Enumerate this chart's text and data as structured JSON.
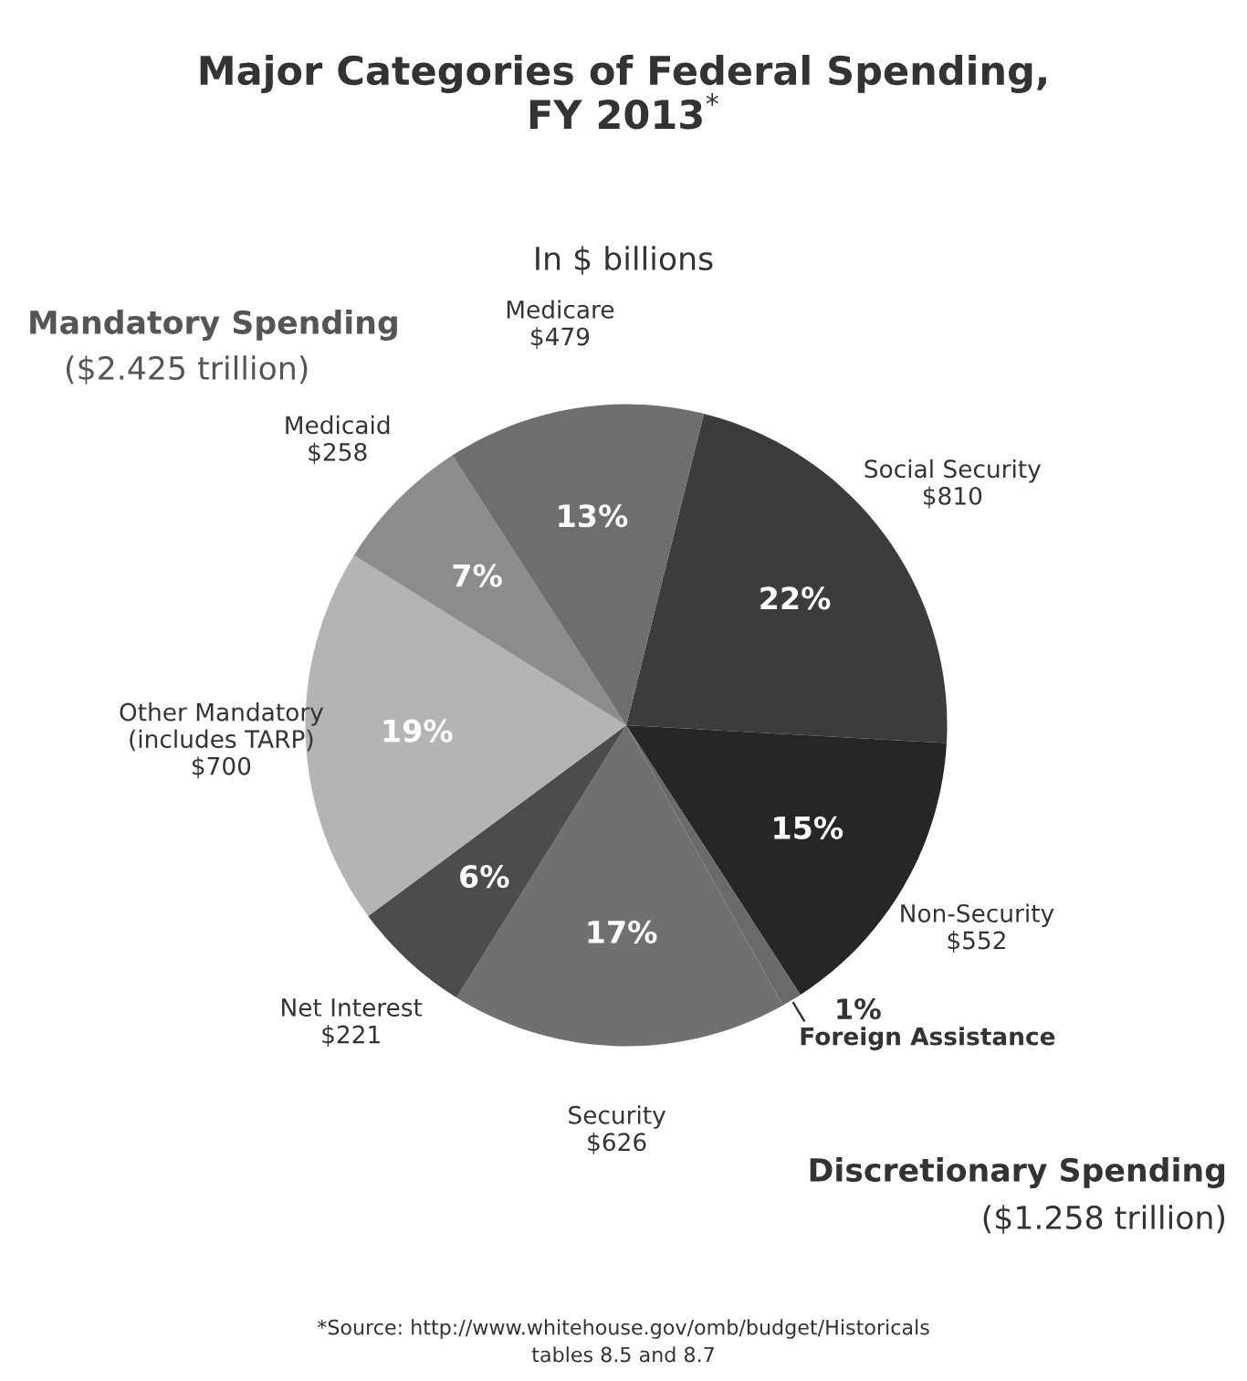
{
  "chart_data": {
    "type": "pie",
    "title": "Major Categories of Federal Spending,\nFY 2013$^{*}$",
    "subtitle": "In $ billions",
    "categories": [
      "Social Security",
      "Non-Security",
      "Foreign Assistance",
      "Security",
      "Net Interest",
      "Other Mandatory\n(includes TARP)",
      "Medicaid",
      "Medicare"
    ],
    "values": [
      810,
      552,
      37,
      626,
      221,
      700,
      258,
      479
    ],
    "value_labels": [
      "$810",
      "$552",
      null,
      "$626",
      "$221",
      "$700",
      "$258",
      "$479"
    ],
    "colors": [
      "#3c3c3c",
      "#262626",
      "#6a6a6a",
      "#707070",
      "#4c4c4c",
      "#b4b4b4",
      "#8c8c8c",
      "#6e6e6e"
    ],
    "annotations": [
      {
        "text": "22%",
        "x": "Social Security"
      },
      {
        "text": "15%",
        "x": "Non-Security"
      },
      {
        "text": "1%",
        "x": "Foreign Assistance"
      },
      {
        "text": "17%",
        "x": "Security"
      },
      {
        "text": "6%",
        "x": "Net Interest"
      },
      {
        "text": "19%",
        "x": "Other Mandatory\n(includes TARP)"
      },
      {
        "text": "7%",
        "x": "Medicaid"
      },
      {
        "text": "13%",
        "x": "Medicare"
      },
      "Mandatory Spending",
      "($2.425 trillion)",
      "Discretionary Spending",
      "($1.258 trillion)",
      "*Source: http://www.whitehouse.gov/omb/budget/Historicals\ntables 8.5 and 8.7"
    ],
    "legend": false
  }
}
